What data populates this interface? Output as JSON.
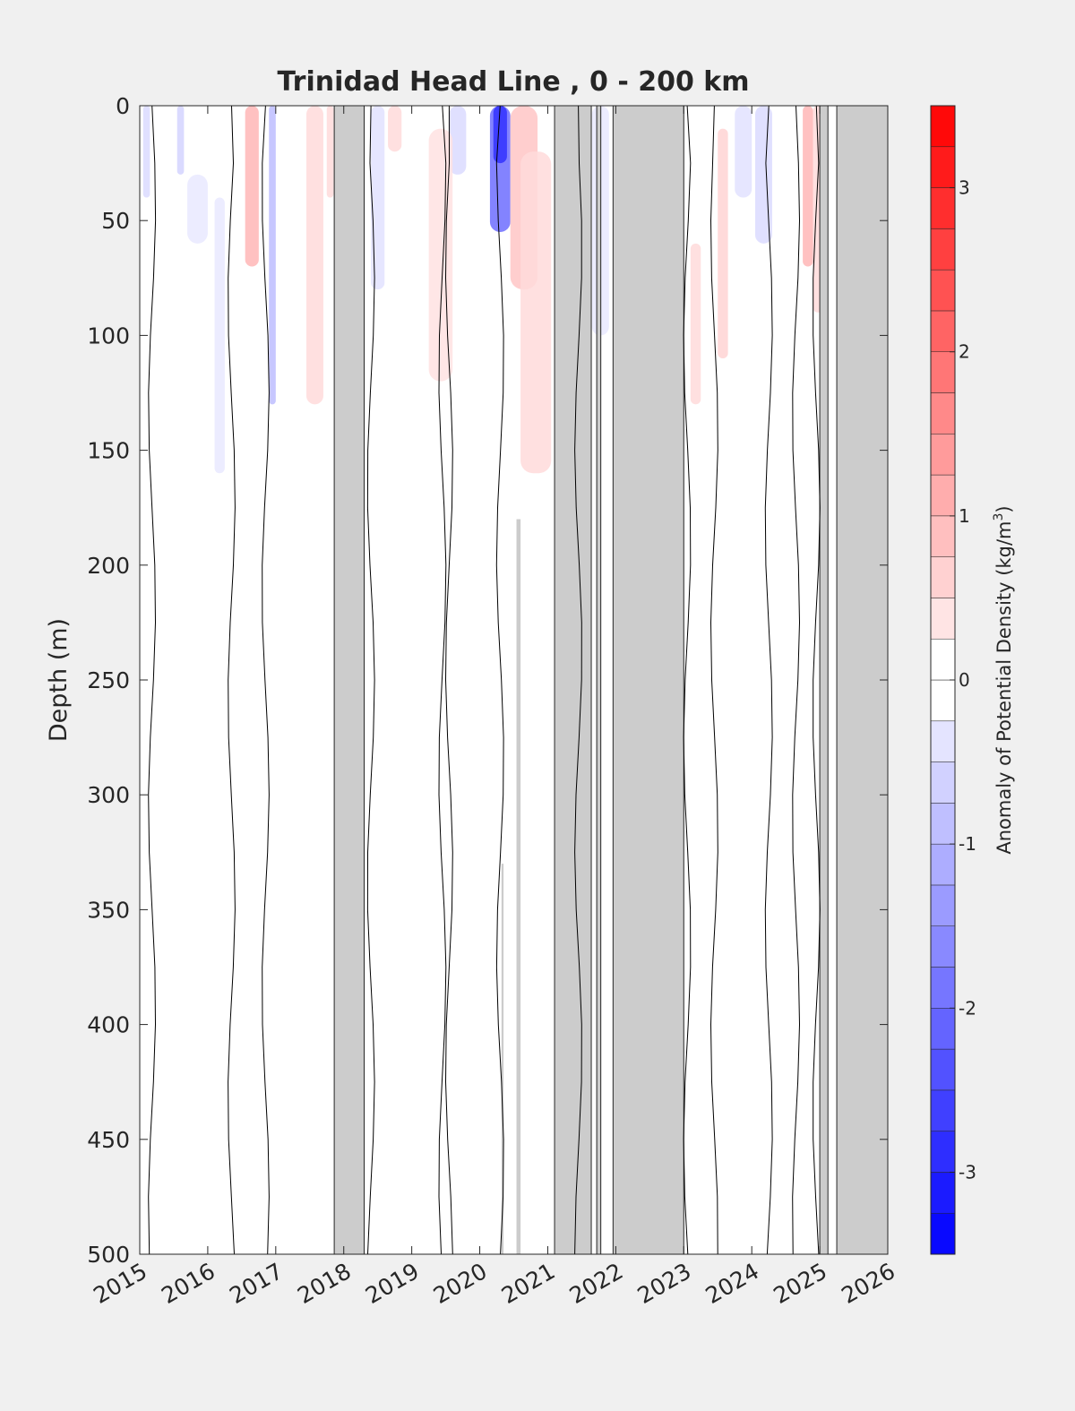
{
  "chart_data": {
    "type": "heatmap",
    "title": "Trinidad Head Line , 0 - 200 km",
    "xlabel": "",
    "ylabel": "Depth (m)",
    "xlim": [
      2015,
      2026
    ],
    "ylim": [
      0,
      500
    ],
    "y_reversed": true,
    "x_ticks": [
      "2015",
      "2016",
      "2017",
      "2018",
      "2019",
      "2020",
      "2021",
      "2022",
      "2023",
      "2024",
      "2025",
      "2026"
    ],
    "y_ticks": [
      "0",
      "50",
      "100",
      "150",
      "200",
      "250",
      "300",
      "350",
      "400",
      "450",
      "500"
    ],
    "colorbar": {
      "label_prefix": "Anomaly of Potential Density (kg/m",
      "label_exponent": "3",
      "label_suffix": ")",
      "range": [
        -3.5,
        3.5
      ],
      "step": 0.25,
      "ticks": [
        "-3",
        "-2",
        "-1",
        "0",
        "1",
        "2",
        "3"
      ],
      "negative_color": "#0000ff",
      "positive_color": "#ff0000",
      "zero_color": "#ffffff"
    },
    "no_data_color": "#cccccc",
    "no_data_periods": [
      [
        2017.86,
        2018.3
      ],
      [
        2021.1,
        2021.64
      ],
      [
        2021.72,
        2021.78
      ],
      [
        2021.96,
        2023.0
      ],
      [
        2025.0,
        2025.12
      ],
      [
        2025.25,
        2026.0
      ]
    ],
    "partial_gaps": [
      {
        "x": [
          2020.54,
          2020.6
        ],
        "depth": [
          180,
          500
        ]
      },
      {
        "x": [
          2020.32,
          2020.35
        ],
        "depth": [
          330,
          500
        ]
      }
    ],
    "anomaly_patches": [
      {
        "x": [
          2020.15,
          2020.45
        ],
        "depth": [
          0,
          55
        ],
        "value": -2.0
      },
      {
        "x": [
          2020.2,
          2020.4
        ],
        "depth": [
          0,
          25
        ],
        "value": -2.8
      },
      {
        "x": [
          2016.9,
          2017.0
        ],
        "depth": [
          0,
          130
        ],
        "value": -0.9
      },
      {
        "x": [
          2015.05,
          2015.15
        ],
        "depth": [
          0,
          40
        ],
        "value": -0.5
      },
      {
        "x": [
          2015.55,
          2015.65
        ],
        "depth": [
          0,
          30
        ],
        "value": -0.6
      },
      {
        "x": [
          2015.7,
          2016.0
        ],
        "depth": [
          30,
          60
        ],
        "value": -0.3
      },
      {
        "x": [
          2016.1,
          2016.25
        ],
        "depth": [
          40,
          160
        ],
        "value": -0.3
      },
      {
        "x": [
          2018.4,
          2018.6
        ],
        "depth": [
          0,
          80
        ],
        "value": -0.4
      },
      {
        "x": [
          2019.55,
          2019.8
        ],
        "depth": [
          0,
          30
        ],
        "value": -0.5
      },
      {
        "x": [
          2021.65,
          2021.9
        ],
        "depth": [
          0,
          100
        ],
        "value": -0.3
      },
      {
        "x": [
          2023.75,
          2024.0
        ],
        "depth": [
          0,
          40
        ],
        "value": -0.4
      },
      {
        "x": [
          2024.05,
          2024.3
        ],
        "depth": [
          0,
          60
        ],
        "value": -0.5
      },
      {
        "x": [
          2016.55,
          2016.75
        ],
        "depth": [
          0,
          70
        ],
        "value": 1.0
      },
      {
        "x": [
          2017.45,
          2017.7
        ],
        "depth": [
          0,
          130
        ],
        "value": 0.5
      },
      {
        "x": [
          2017.75,
          2017.85
        ],
        "depth": [
          0,
          40
        ],
        "value": 0.5
      },
      {
        "x": [
          2018.65,
          2018.85
        ],
        "depth": [
          0,
          20
        ],
        "value": 0.5
      },
      {
        "x": [
          2019.25,
          2019.6
        ],
        "depth": [
          10,
          120
        ],
        "value": 0.4
      },
      {
        "x": [
          2020.45,
          2020.85
        ],
        "depth": [
          0,
          80
        ],
        "value": 0.8
      },
      {
        "x": [
          2020.6,
          2021.05
        ],
        "depth": [
          20,
          160
        ],
        "value": 0.5
      },
      {
        "x": [
          2023.1,
          2023.25
        ],
        "depth": [
          60,
          130
        ],
        "value": 0.5
      },
      {
        "x": [
          2023.5,
          2023.65
        ],
        "depth": [
          10,
          110
        ],
        "value": 0.6
      },
      {
        "x": [
          2024.75,
          2024.9
        ],
        "depth": [
          0,
          70
        ],
        "value": 1.0
      },
      {
        "x": [
          2024.9,
          2025.05
        ],
        "depth": [
          0,
          90
        ],
        "value": 0.5
      }
    ],
    "contour_lines_x": [
      2015.18,
      2016.35,
      2016.85,
      2018.4,
      2019.45,
      2019.55,
      2020.3,
      2021.45,
      2023.05,
      2023.45,
      2024.25,
      2024.65,
      2024.95
    ]
  }
}
